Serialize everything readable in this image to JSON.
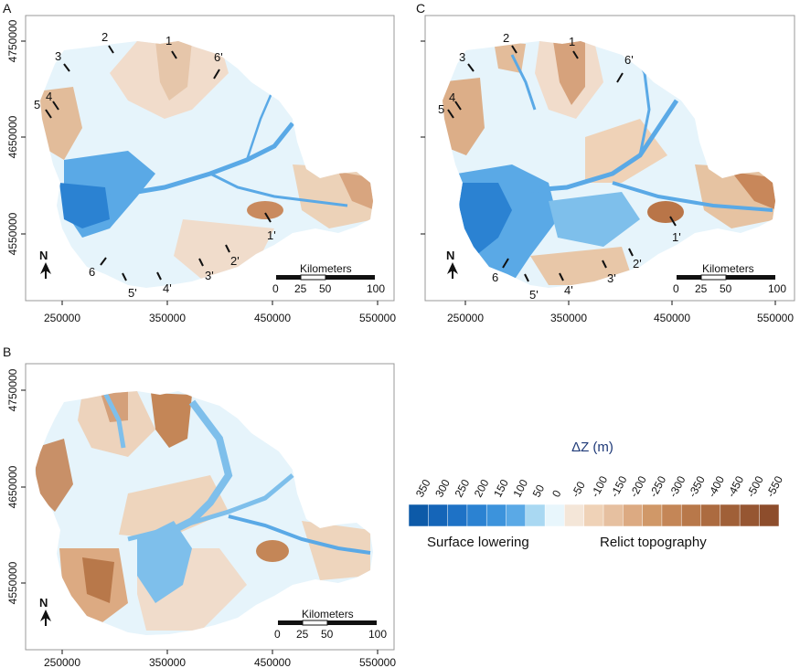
{
  "panels": {
    "A": {
      "letter": "A"
    },
    "B": {
      "letter": "B"
    },
    "C": {
      "letter": "C"
    }
  },
  "axes": {
    "x_ticks": [
      "250000",
      "350000",
      "450000",
      "550000"
    ],
    "y_ticks": [
      "4750000",
      "4650000",
      "4550000"
    ]
  },
  "profiles": {
    "A": [
      "1",
      "2",
      "3",
      "4",
      "5",
      "6'",
      "1'",
      "2'",
      "3'",
      "4'",
      "5'",
      "6"
    ],
    "C": [
      "1",
      "2",
      "3",
      "4",
      "5",
      "6'",
      "1'",
      "2'",
      "3'",
      "4'",
      "5'",
      "6"
    ]
  },
  "scale_bar": {
    "title": "Kilometers",
    "labels": [
      "0",
      "25",
      "50",
      "100"
    ]
  },
  "north_arrow": {
    "label": "N"
  },
  "legend": {
    "title": "ΔZ (m)",
    "values": [
      "350",
      "300",
      "250",
      "200",
      "150",
      "100",
      "50",
      "0",
      "-50",
      "-100",
      "-150",
      "-200",
      "-250",
      "-300",
      "-350",
      "-400",
      "-450",
      "-500",
      "-550"
    ],
    "colors": [
      "#0d5aa8",
      "#1565b8",
      "#1e72c6",
      "#2b82d2",
      "#3c93dc",
      "#5aa9e6",
      "#a9d8f2",
      "#e8f6fc",
      "#f4e6d8",
      "#efd2b7",
      "#e6c0a0",
      "#dcaa82",
      "#d09868",
      "#c48657",
      "#b8784a",
      "#ac6b40",
      "#a06038",
      "#965632",
      "#8d4d2c"
    ],
    "left_caption": "Surface lowering",
    "right_caption": "Relict topography"
  }
}
